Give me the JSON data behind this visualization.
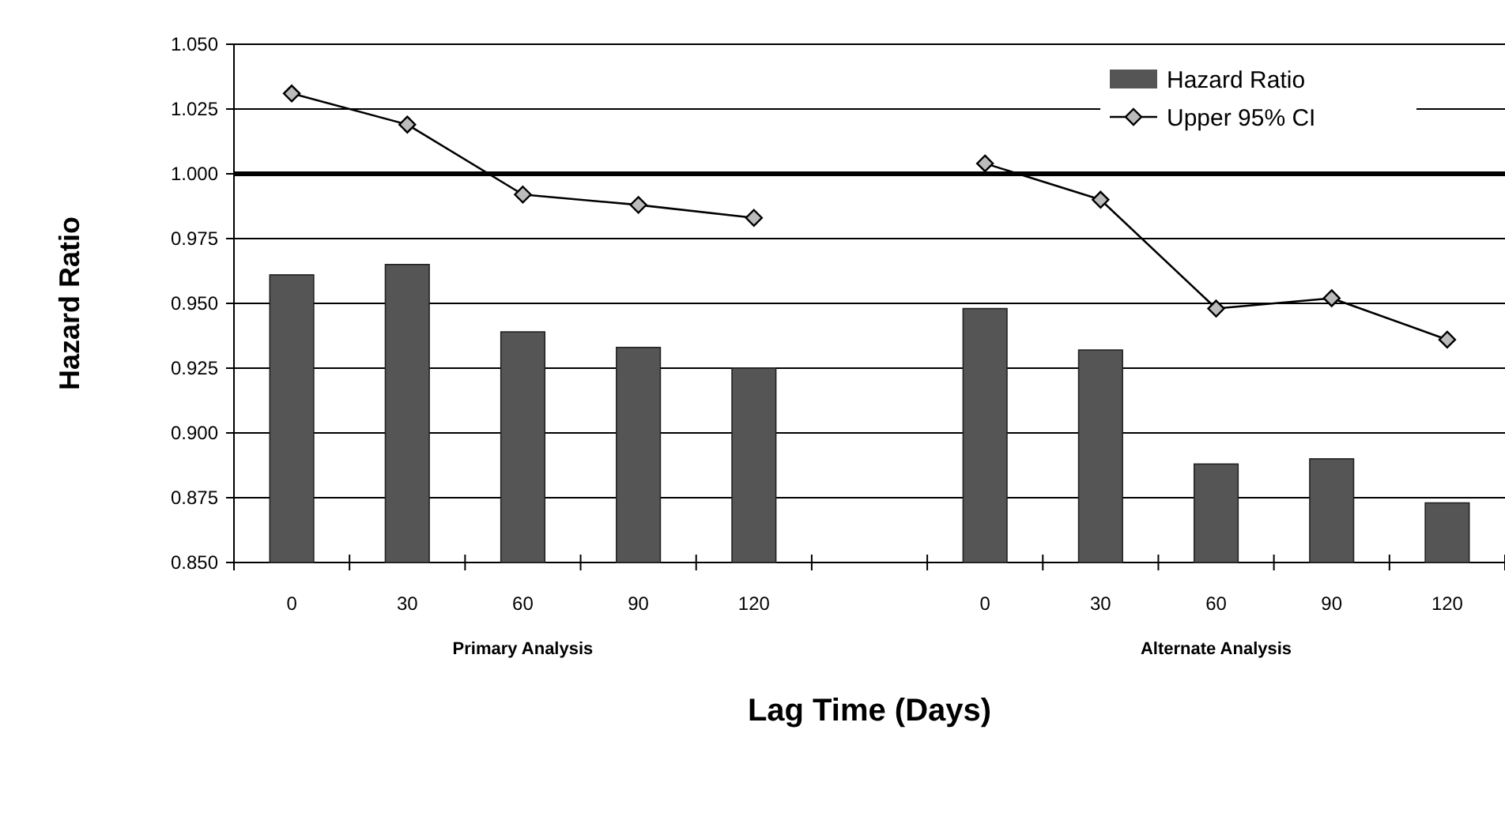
{
  "chart_data": {
    "type": "bar",
    "ylabel": "Hazard Ratio",
    "xlabel": "Lag Time (Days)",
    "categories": [
      "0",
      "30",
      "60",
      "90",
      "120",
      null,
      "0",
      "30",
      "60",
      "90",
      "120"
    ],
    "series": [
      {
        "name": "Hazard Ratio",
        "color": "#555555",
        "values": [
          0.961,
          0.965,
          0.939,
          0.933,
          0.925,
          null,
          0.948,
          0.932,
          0.888,
          0.89,
          0.873
        ]
      },
      {
        "name": "Upper 95% CI",
        "type": "line",
        "color": "#000000",
        "marker": "diamond",
        "values": [
          1.031,
          1.019,
          0.992,
          0.988,
          0.983,
          null,
          1.004,
          0.99,
          0.948,
          0.952,
          0.936
        ]
      }
    ],
    "ylim": [
      0.85,
      1.05
    ],
    "yticks": [
      {
        "value": 0.85,
        "label": "0.850"
      },
      {
        "value": 0.875,
        "label": "0.875"
      },
      {
        "value": 0.9,
        "label": "0.900"
      },
      {
        "value": 0.925,
        "label": "0.925"
      },
      {
        "value": 0.95,
        "label": "0.950"
      },
      {
        "value": 0.975,
        "label": "0.975"
      },
      {
        "value": 1,
        "label": "1.000"
      },
      {
        "value": 1.025,
        "label": "1.025"
      },
      {
        "value": 1.05,
        "label": "1.050"
      }
    ],
    "grid": "y",
    "legend": "top right",
    "ref_lines": [
      {
        "axis": "y",
        "value": 1,
        "color": "#000000"
      }
    ],
    "annotations": [
      "Primary Analysis",
      "Alternate Analysis"
    ]
  }
}
